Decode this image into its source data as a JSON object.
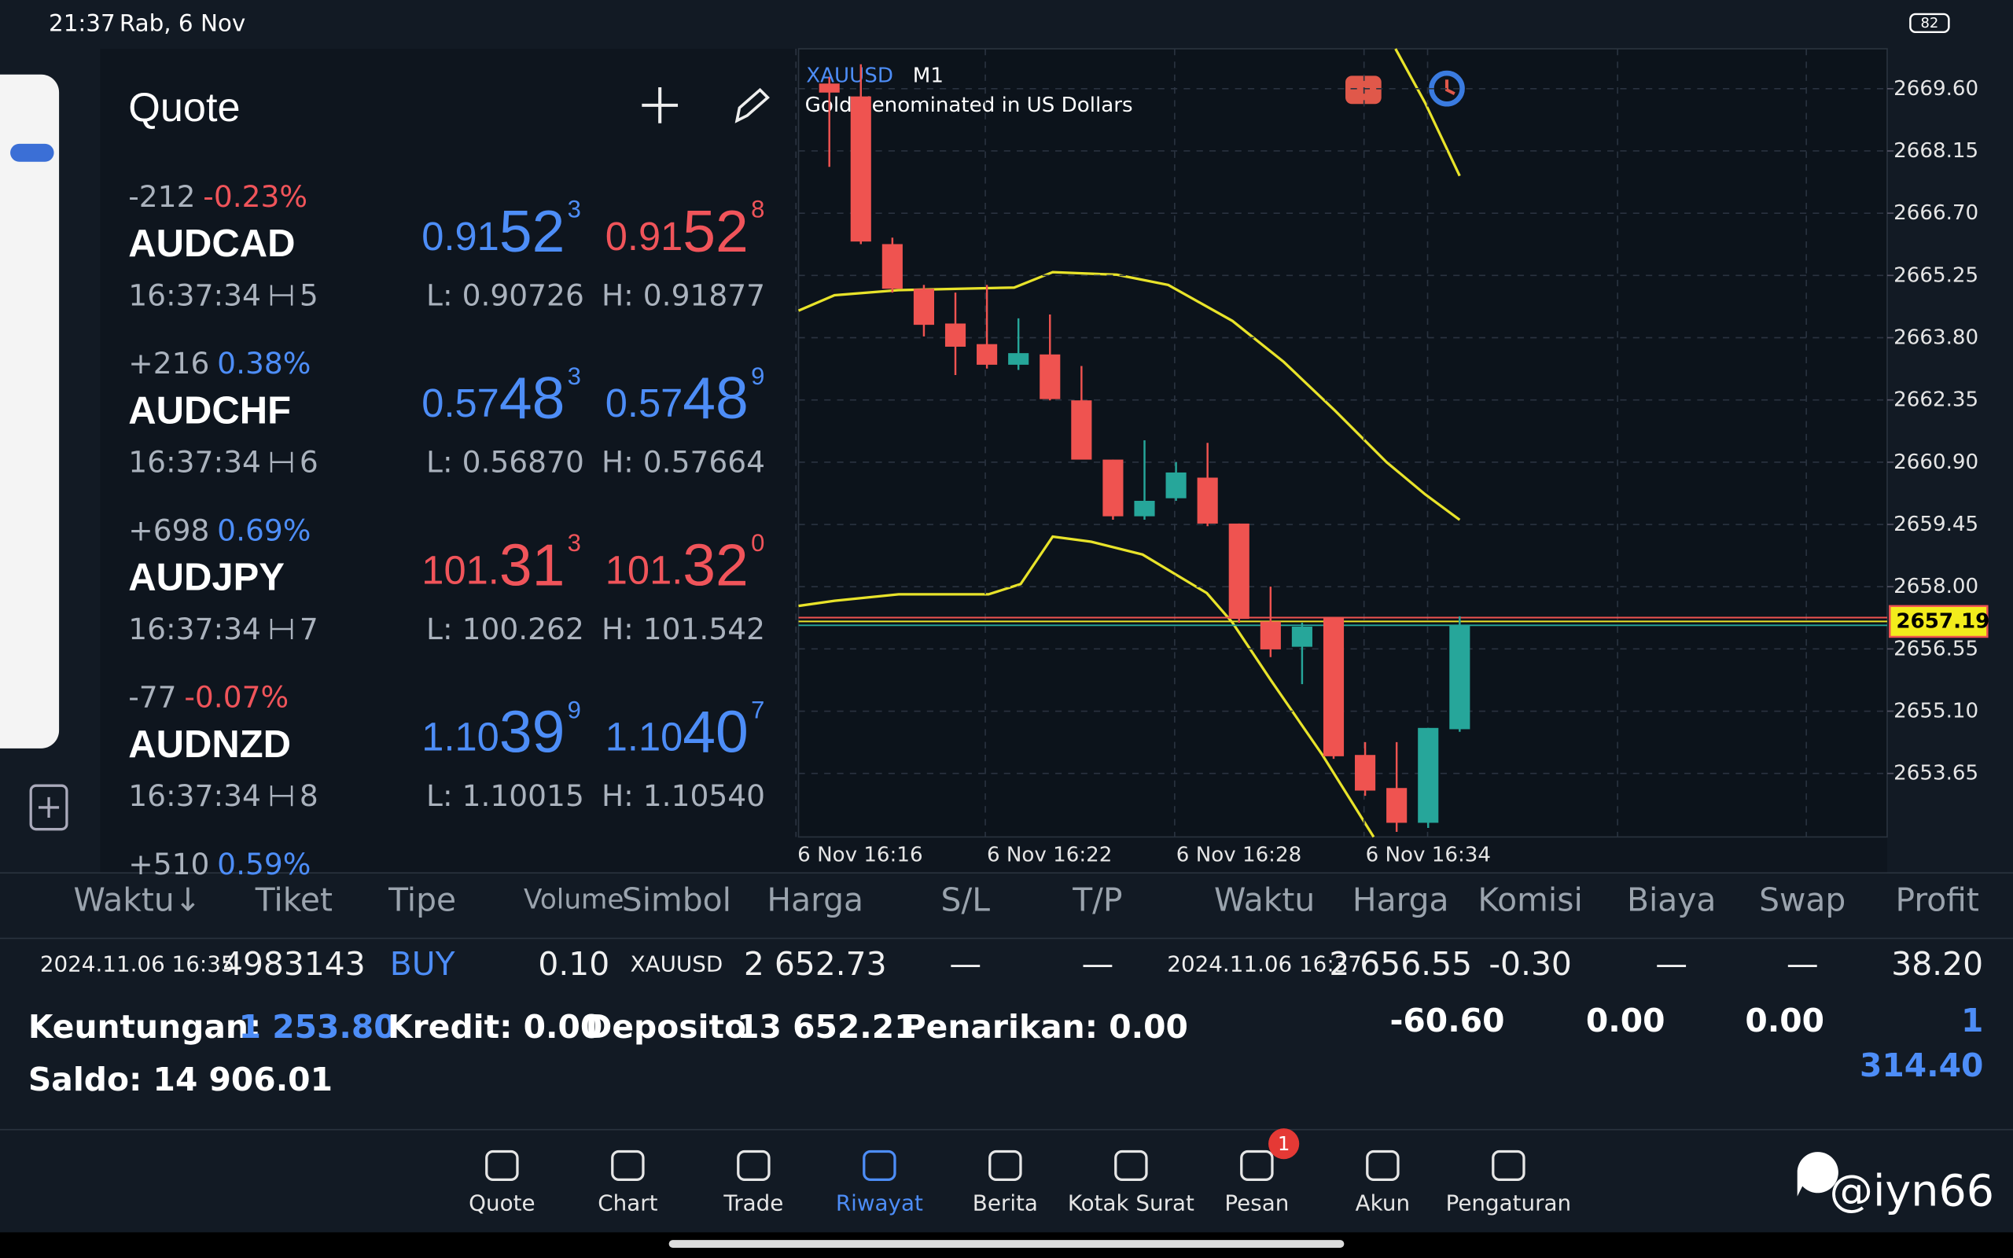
{
  "status_bar": {
    "time": "21:37",
    "date": "Rab, 6 Nov",
    "battery": "82"
  },
  "quote": {
    "title": "Quote",
    "items": [
      {
        "change": "-212",
        "percent": "-0.23%",
        "symbol": "AUDCAD",
        "time": "16:37:34",
        "spread": "5",
        "bid": [
          "0.91",
          "52",
          "3"
        ],
        "ask": [
          "0.91",
          "52",
          "8"
        ],
        "bid_color": "#4d8df7",
        "ask_color": "#f0545a",
        "low": "L: 0.90726",
        "high": "H: 0.91877",
        "percent_color": "#f0545a"
      },
      {
        "change": "+216",
        "percent": "0.38%",
        "symbol": "AUDCHF",
        "time": "16:37:34",
        "spread": "6",
        "bid": [
          "0.57",
          "48",
          "3"
        ],
        "ask": [
          "0.57",
          "48",
          "9"
        ],
        "bid_color": "#4d8df7",
        "ask_color": "#4d8df7",
        "low": "L: 0.56870",
        "high": "H: 0.57664",
        "percent_color": "#4d8df7"
      },
      {
        "change": "+698",
        "percent": "0.69%",
        "symbol": "AUDJPY",
        "time": "16:37:34",
        "spread": "7",
        "bid": [
          "101.",
          "31",
          "3"
        ],
        "ask": [
          "101.",
          "32",
          "0"
        ],
        "bid_color": "#f0545a",
        "ask_color": "#f0545a",
        "low": "L: 100.262",
        "high": "H: 101.542",
        "percent_color": "#4d8df7"
      },
      {
        "change": "-77",
        "percent": "-0.07%",
        "symbol": "AUDNZD",
        "time": "16:37:34",
        "spread": "8",
        "bid": [
          "1.10",
          "39",
          "9"
        ],
        "ask": [
          "1.10",
          "40",
          "7"
        ],
        "bid_color": "#4d8df7",
        "ask_color": "#4d8df7",
        "low": "L: 1.10015",
        "high": "H: 1.10540",
        "percent_color": "#f0545a"
      },
      {
        "change": "+510",
        "percent": "0.59%",
        "percent_color": "#4d8df7"
      }
    ]
  },
  "chart_data": {
    "type": "candlestick",
    "title": "XAUUSD",
    "timeframe": "M1",
    "subtitle": "Gold denominated in US Dollars",
    "up_color": "#26a69a",
    "down_color": "#ef5350",
    "ylim": [
      2652.17,
      2670.53
    ],
    "yticks": [
      {
        "value": 2669.6,
        "label": "2669.60"
      },
      2668.15,
      {
        "value": 2666.7,
        "label": "2666.70"
      },
      2665.25,
      {
        "value": 2663.8,
        "label": "2663.80"
      },
      2662.35,
      {
        "value": 2660.9,
        "label": "2660.90"
      },
      2659.45,
      {
        "value": 2658,
        "label": "2658.00"
      },
      2656.55,
      {
        "value": 2655.1,
        "label": "2655.10"
      },
      2653.65
    ],
    "xtick_labels": [
      "6 Nov 16:16",
      "6 Nov 16:22",
      "6 Nov 16:28",
      "6 Nov 16:34"
    ],
    "current_price": 2657.19,
    "grid": true,
    "candles": [
      {
        "open": 2669.72,
        "high": 2669.87,
        "low": 2667.78,
        "close": 2669.51
      },
      {
        "open": 2669.42,
        "high": 2670.17,
        "low": 2665.98,
        "close": 2666.04
      },
      {
        "open": 2665.98,
        "high": 2666.13,
        "low": 2664.85,
        "close": 2664.94
      },
      {
        "open": 2664.94,
        "high": 2665.03,
        "low": 2663.83,
        "close": 2664.1
      },
      {
        "open": 2664.13,
        "high": 2664.85,
        "low": 2662.93,
        "close": 2663.59
      },
      {
        "open": 2663.65,
        "high": 2665.03,
        "low": 2663.08,
        "close": 2663.17
      },
      {
        "open": 2663.17,
        "high": 2664.25,
        "low": 2663.05,
        "close": 2663.44
      },
      {
        "open": 2663.41,
        "high": 2664.34,
        "low": 2662.34,
        "close": 2662.37
      },
      {
        "open": 2662.34,
        "high": 2663.14,
        "low": 2660.96,
        "close": 2660.96
      },
      {
        "open": 2660.96,
        "high": 2660.96,
        "low": 2659.56,
        "close": 2659.64
      },
      {
        "open": 2659.64,
        "high": 2661.41,
        "low": 2659.56,
        "close": 2660.0
      },
      {
        "open": 2660.06,
        "high": 2660.9,
        "low": 2660.0,
        "close": 2660.66
      },
      {
        "open": 2660.54,
        "high": 2661.35,
        "low": 2659.41,
        "close": 2659.47
      },
      {
        "open": 2659.47,
        "high": 2659.47,
        "low": 2657.16,
        "close": 2657.25
      },
      {
        "open": 2657.19,
        "high": 2658.0,
        "low": 2656.36,
        "close": 2656.54
      },
      {
        "open": 2656.6,
        "high": 2657.16,
        "low": 2655.73,
        "close": 2657.07
      },
      {
        "open": 2657.28,
        "high": 2657.28,
        "low": 2653.99,
        "close": 2654.05
      },
      {
        "open": 2654.08,
        "high": 2654.38,
        "low": 2653.13,
        "close": 2653.25
      },
      {
        "open": 2653.31,
        "high": 2654.38,
        "low": 2652.29,
        "close": 2652.5
      },
      {
        "open": 2652.5,
        "high": 2654.71,
        "low": 2652.38,
        "close": 2654.71
      },
      {
        "open": 2654.68,
        "high": 2657.31,
        "low": 2654.62,
        "close": 2657.1
      }
    ]
  },
  "history": {
    "headers": [
      "Waktu↓",
      "Tiket",
      "Tipe",
      "Volume",
      "Simbol",
      "Harga",
      "S/L",
      "T/P",
      "Waktu",
      "Harga",
      "Komisi",
      "Biaya",
      "Swap",
      "Profit"
    ],
    "rows": [
      [
        "2024.11.06 16:35",
        "4983143",
        "BUY",
        "0.10",
        "XAUUSD",
        "2 652.73",
        "—",
        "—",
        "2024.11.06 16:37",
        "2 656.55",
        "-0.30",
        "—",
        "—",
        "38.20"
      ]
    ],
    "summary": {
      "profit_label": "Keuntungan:",
      "profit": "1 253.80",
      "credit": "Kredit: 0.00",
      "deposit_label": "Deposito",
      "deposit": "13 652.21",
      "withdrawal": "Penarikan: 0.00",
      "balance": "Saldo: 14 906.01"
    },
    "totals": {
      "commission": "-60.60",
      "fee": "0.00",
      "swap": "0.00",
      "profit_line1": "1",
      "profit_line2": "314.40"
    }
  },
  "nav": {
    "items": [
      "Quote",
      "Chart",
      "Trade",
      "Riwayat",
      "Berita",
      "Kotak Surat",
      "Pesan",
      "Akun",
      "Pengaturan"
    ],
    "active": 3,
    "badge": "1",
    "badge_index": 6
  },
  "watermark": "@iyn66"
}
